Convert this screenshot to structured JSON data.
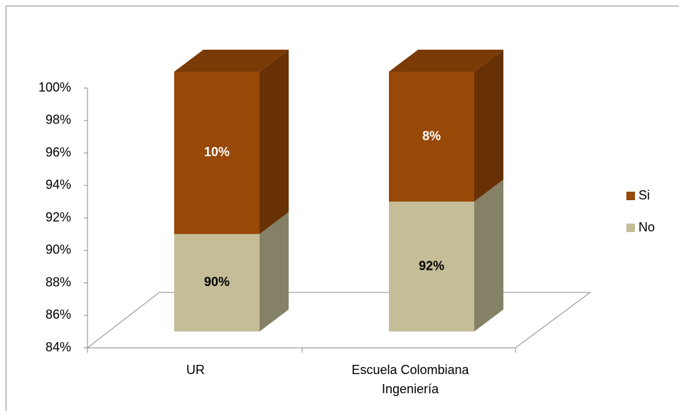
{
  "chart_data": {
    "type": "bar3d_stacked",
    "categories": [
      "UR",
      "Escuela Colombiana Ingeniería"
    ],
    "series": [
      {
        "name": "No",
        "color": "#c4bd97",
        "values": [
          90,
          92
        ],
        "value_labels": [
          "90%",
          "92%"
        ]
      },
      {
        "name": "Si",
        "color": "#984807",
        "values": [
          10,
          8
        ],
        "value_labels": [
          "10%",
          "8%"
        ]
      }
    ],
    "ylim": [
      84,
      100
    ],
    "yticks": [
      {
        "value": 84,
        "label": "84%"
      },
      {
        "value": 86,
        "label": "86%"
      },
      {
        "value": 88,
        "label": "88%"
      },
      {
        "value": 90,
        "label": "90%"
      },
      {
        "value": 92,
        "label": "92%"
      },
      {
        "value": 94,
        "label": "94%"
      },
      {
        "value": 96,
        "label": "96%"
      },
      {
        "value": 98,
        "label": "98%"
      },
      {
        "value": 100,
        "label": "100%"
      }
    ],
    "legend": "right"
  }
}
